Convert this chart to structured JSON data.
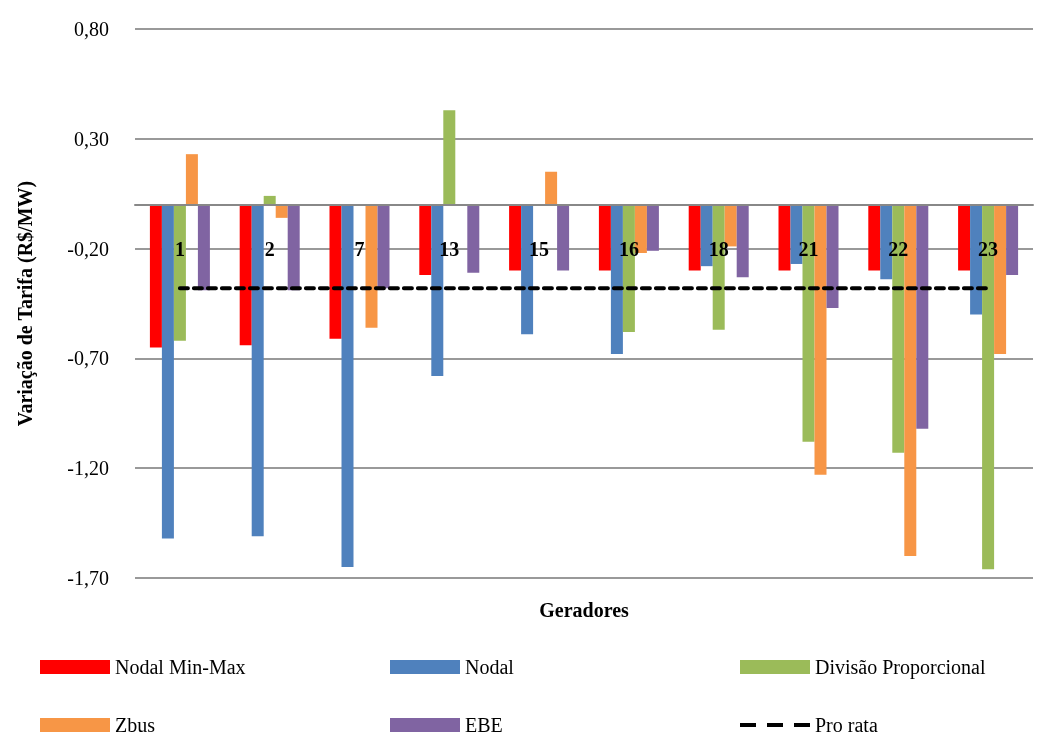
{
  "chart_data": {
    "type": "bar",
    "xlabel": "Geradores",
    "ylabel": "Variação de Tarifa (R$/MW)",
    "categories": [
      "1",
      "2",
      "7",
      "13",
      "15",
      "16",
      "18",
      "21",
      "22",
      "23"
    ],
    "series": [
      {
        "name": "Nodal Min-Max",
        "color": "#ff0000",
        "values": [
          -0.65,
          -0.64,
          -0.61,
          -0.32,
          -0.3,
          -0.3,
          -0.3,
          -0.3,
          -0.3,
          -0.3
        ]
      },
      {
        "name": "Nodal",
        "color": "#4f81bd",
        "values": [
          -1.52,
          -1.51,
          -1.65,
          -0.78,
          -0.59,
          -0.68,
          -0.28,
          -0.27,
          -0.34,
          -0.5
        ]
      },
      {
        "name": "Divisão Proporcional",
        "color": "#9bbb59",
        "values": [
          -0.62,
          0.04,
          0,
          0.43,
          0,
          -0.58,
          -0.57,
          -1.08,
          -1.13,
          -1.66
        ]
      },
      {
        "name": "Zbus",
        "color": "#f79646",
        "values": [
          0.23,
          -0.06,
          -0.56,
          0,
          0.15,
          -0.22,
          -0.19,
          -1.23,
          -1.6,
          -0.68
        ]
      },
      {
        "name": "EBE",
        "color": "#8064a2",
        "values": [
          -0.39,
          -0.39,
          -0.38,
          -0.31,
          -0.3,
          -0.21,
          -0.33,
          -0.47,
          -1.02,
          -0.32
        ]
      },
      {
        "name": "Pro rata",
        "type": "line",
        "color": "#000000",
        "line_style": "dashed",
        "marker": "none",
        "values": [
          -0.38,
          -0.38,
          -0.38,
          -0.38,
          -0.38,
          -0.38,
          -0.38,
          -0.38,
          -0.38,
          -0.38
        ]
      }
    ],
    "ylim": [
      -1.7,
      0.8
    ],
    "yticks": [
      {
        "value": 0.8,
        "label": "0,80"
      },
      {
        "value": 0.3,
        "label": "0,30"
      },
      {
        "value": -0.2,
        "label": "-0,20"
      },
      {
        "value": -0.7,
        "label": "-0,70"
      },
      {
        "value": -1.2,
        "label": "-1,20"
      },
      {
        "value": -1.7,
        "label": "-1,70"
      }
    ],
    "grid": "y",
    "legend": "bottom"
  }
}
